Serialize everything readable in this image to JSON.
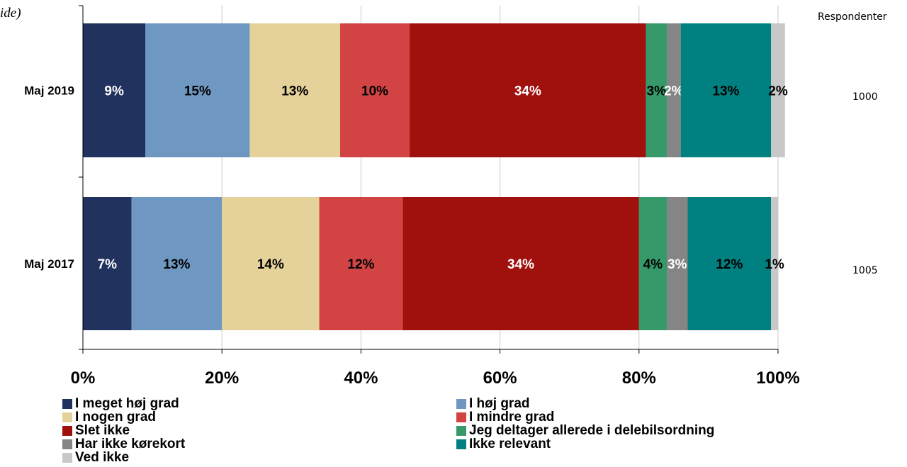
{
  "corner_text": "ide)",
  "respondents_header": "Respondenter",
  "chart_data": {
    "type": "bar",
    "orientation": "horizontal",
    "stacked": true,
    "categories": [
      "Maj 2019",
      "Maj 2017"
    ],
    "respondents": [
      "1000",
      "1005"
    ],
    "xlim": [
      0,
      100
    ],
    "x_ticks": [
      "0%",
      "20%",
      "40%",
      "60%",
      "80%",
      "100%"
    ],
    "grid": true,
    "legend_position": "bottom",
    "series": [
      {
        "name": "I meget høj grad",
        "color": "#21325E",
        "label_color": "#ffffff",
        "values": [
          9,
          7
        ],
        "labels": [
          "9%",
          "7%"
        ]
      },
      {
        "name": "I høj grad",
        "color": "#6E97C2",
        "label_color": "#000000",
        "values": [
          15,
          13
        ],
        "labels": [
          "15%",
          "13%"
        ]
      },
      {
        "name": "I nogen grad",
        "color": "#E5D29A",
        "label_color": "#000000",
        "values": [
          13,
          14
        ],
        "labels": [
          "13%",
          "14%"
        ]
      },
      {
        "name": "I mindre grad",
        "color": "#D24444",
        "label_color": "#000000",
        "values": [
          10,
          12
        ],
        "labels": [
          "10%",
          "12%"
        ]
      },
      {
        "name": "Slet ikke",
        "color": "#A0100D",
        "label_color": "#ffffff",
        "values": [
          34,
          34
        ],
        "labels": [
          "34%",
          "34%"
        ]
      },
      {
        "name": "Jeg deltager allerede i delebilsordning",
        "color": "#35996A",
        "label_color": "#000000",
        "values": [
          3,
          4
        ],
        "labels": [
          "3%",
          "4%"
        ]
      },
      {
        "name": "Har ikke kørekort",
        "color": "#858585",
        "label_color": "#ffffff",
        "values": [
          2,
          3
        ],
        "labels": [
          "2%",
          "3%"
        ]
      },
      {
        "name": "Ikke relevant",
        "color": "#008080",
        "label_color": "#000000",
        "values": [
          13,
          12
        ],
        "labels": [
          "13%",
          "12%"
        ]
      },
      {
        "name": "Ved ikke",
        "color": "#C8C8C8",
        "label_color": "#000000",
        "values": [
          2,
          1
        ],
        "labels": [
          "2%",
          "1%"
        ]
      }
    ]
  }
}
